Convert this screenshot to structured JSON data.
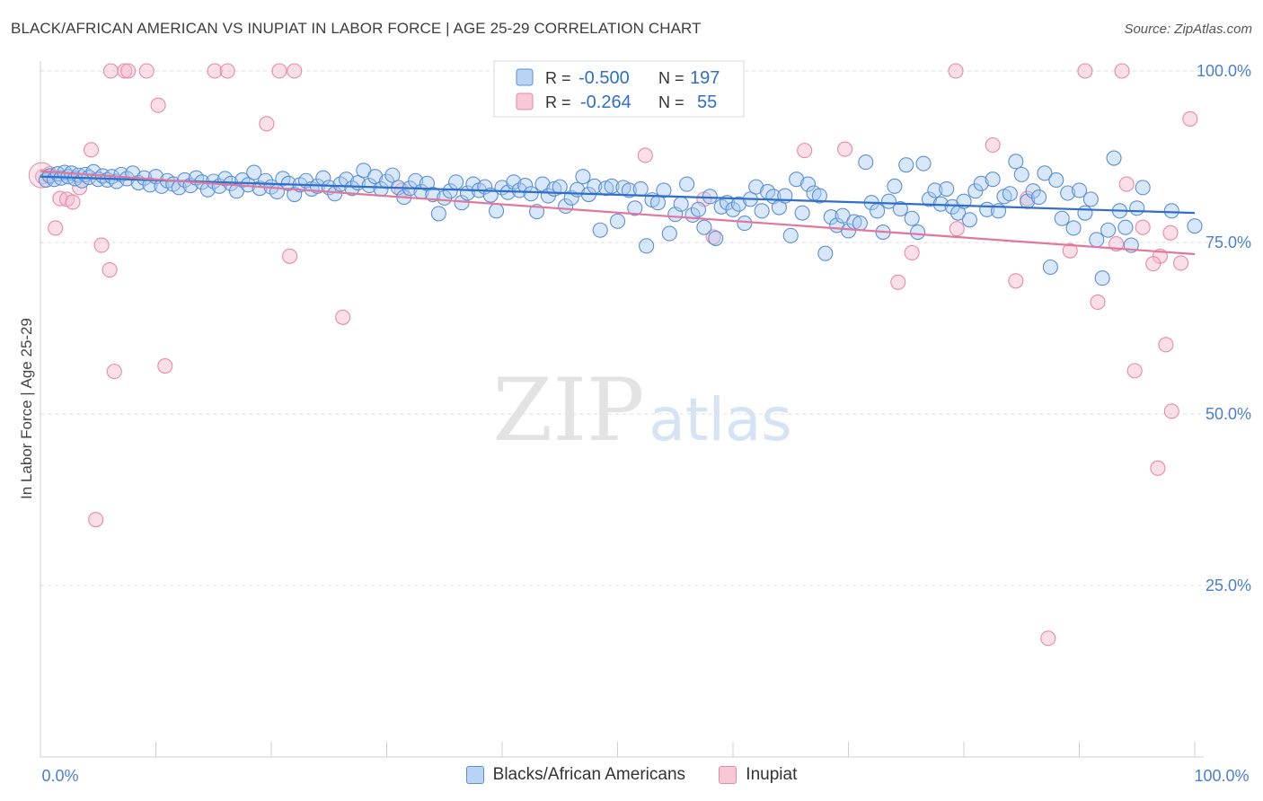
{
  "title": "BLACK/AFRICAN AMERICAN VS INUPIAT IN LABOR FORCE | AGE 25-29 CORRELATION CHART",
  "source": "Source: ZipAtlas.com",
  "watermark": {
    "zip": "ZIP",
    "atlas": "atlas"
  },
  "colors": {
    "blue_fill": "#a9c9f1",
    "blue_stroke": "#5b8fd6",
    "blue_line": "#2f6fc8",
    "pink_fill": "#f6b9cb",
    "pink_stroke": "#e58aa6",
    "pink_line": "#e2769b",
    "value_text": "#2f6fc8",
    "axis_text": "#4a7fcf"
  },
  "legend_top": {
    "rows": [
      {
        "r_label": "R =",
        "r_value": "-0.500",
        "n_label": "N =",
        "n_value": "197"
      },
      {
        "r_label": "R =",
        "r_value": "-0.264",
        "n_label": "N =",
        "n_value": "55"
      }
    ]
  },
  "legend_bottom": [
    {
      "label": "Blacks/African Americans"
    },
    {
      "label": "Inupiat"
    }
  ],
  "chart_data": {
    "type": "scatter",
    "title": "BLACK/AFRICAN AMERICAN VS INUPIAT IN LABOR FORCE | AGE 25-29 CORRELATION CHART",
    "xlabel": "",
    "ylabel": "In Labor Force | Age 25-29",
    "xlim": [
      0,
      100
    ],
    "ylim": [
      0,
      102
    ],
    "x_tick_labels": [
      "0.0%",
      "100.0%"
    ],
    "y_ticks": [
      25,
      50,
      75,
      100
    ],
    "y_tick_labels": [
      "25.0%",
      "50.0%",
      "75.0%",
      "100.0%"
    ],
    "grid": "horizontal dashed",
    "legend_placement": "top-center",
    "series": [
      {
        "name": "Blacks/African Americans",
        "r": -0.5,
        "n": 197,
        "trend": {
          "x": [
            0,
            100
          ],
          "y": [
            84.6,
            79.3
          ]
        },
        "points": [
          [
            0.5,
            84.1
          ],
          [
            0.8,
            84.7
          ],
          [
            1.2,
            84.2
          ],
          [
            1.5,
            85.0
          ],
          [
            1.8,
            84.4
          ],
          [
            2.1,
            85.2
          ],
          [
            2.4,
            84.6
          ],
          [
            2.7,
            85.1
          ],
          [
            3.0,
            84.3
          ],
          [
            3.3,
            84.8
          ],
          [
            3.6,
            84.0
          ],
          [
            3.9,
            84.9
          ],
          [
            4.2,
            84.5
          ],
          [
            4.6,
            85.3
          ],
          [
            5.0,
            84.2
          ],
          [
            5.4,
            84.7
          ],
          [
            5.8,
            84.1
          ],
          [
            6.2,
            84.6
          ],
          [
            6.6,
            83.9
          ],
          [
            7.0,
            84.9
          ],
          [
            7.5,
            84.3
          ],
          [
            8.0,
            85.1
          ],
          [
            8.5,
            83.7
          ],
          [
            9.0,
            84.4
          ],
          [
            9.5,
            83.4
          ],
          [
            10.0,
            84.6
          ],
          [
            10.5,
            83.2
          ],
          [
            11.0,
            84.0
          ],
          [
            11.5,
            83.5
          ],
          [
            12.0,
            83.0
          ],
          [
            12.5,
            84.1
          ],
          [
            13.0,
            83.3
          ],
          [
            13.5,
            84.4
          ],
          [
            14.0,
            83.8
          ],
          [
            14.5,
            82.7
          ],
          [
            15.0,
            83.9
          ],
          [
            15.5,
            83.2
          ],
          [
            16.0,
            84.3
          ],
          [
            16.5,
            83.6
          ],
          [
            17.0,
            82.5
          ],
          [
            17.5,
            84.1
          ],
          [
            18.0,
            83.4
          ],
          [
            18.5,
            85.2
          ],
          [
            19.0,
            82.9
          ],
          [
            19.5,
            84.0
          ],
          [
            20.0,
            83.1
          ],
          [
            20.5,
            82.4
          ],
          [
            21.0,
            84.3
          ],
          [
            21.5,
            83.6
          ],
          [
            22.0,
            82.0
          ],
          [
            22.5,
            83.4
          ],
          [
            23.0,
            84.0
          ],
          [
            23.5,
            82.8
          ],
          [
            24.0,
            83.2
          ],
          [
            24.5,
            84.4
          ],
          [
            25.0,
            83.0
          ],
          [
            25.5,
            82.1
          ],
          [
            26.0,
            83.5
          ],
          [
            26.5,
            84.2
          ],
          [
            27.0,
            82.9
          ],
          [
            27.5,
            83.7
          ],
          [
            28.0,
            85.5
          ],
          [
            28.5,
            83.3
          ],
          [
            29.0,
            84.6
          ],
          [
            29.5,
            82.8
          ],
          [
            30.0,
            83.9
          ],
          [
            30.5,
            84.8
          ],
          [
            31.0,
            83.0
          ],
          [
            31.5,
            81.6
          ],
          [
            32.0,
            82.9
          ],
          [
            32.5,
            84.0
          ],
          [
            33.0,
            82.4
          ],
          [
            33.5,
            83.6
          ],
          [
            34.0,
            82.0
          ],
          [
            34.5,
            79.2
          ],
          [
            35.0,
            81.5
          ],
          [
            35.5,
            82.5
          ],
          [
            36.0,
            83.8
          ],
          [
            36.5,
            80.8
          ],
          [
            37.0,
            82.2
          ],
          [
            37.5,
            83.5
          ],
          [
            38.0,
            82.6
          ],
          [
            38.5,
            83.1
          ],
          [
            39.0,
            81.9
          ],
          [
            39.5,
            79.6
          ],
          [
            40.0,
            83.0
          ],
          [
            40.5,
            82.3
          ],
          [
            41.0,
            83.8
          ],
          [
            41.5,
            82.6
          ],
          [
            42.0,
            83.3
          ],
          [
            42.5,
            82.1
          ],
          [
            43.0,
            79.5
          ],
          [
            43.5,
            83.5
          ],
          [
            44.0,
            81.8
          ],
          [
            44.5,
            82.8
          ],
          [
            45.0,
            83.1
          ],
          [
            45.5,
            80.3
          ],
          [
            46.0,
            81.5
          ],
          [
            46.5,
            82.7
          ],
          [
            47.0,
            84.6
          ],
          [
            47.5,
            82.0
          ],
          [
            48.0,
            83.2
          ],
          [
            48.5,
            76.8
          ],
          [
            49.0,
            82.9
          ],
          [
            49.5,
            83.2
          ],
          [
            50.0,
            78.1
          ],
          [
            50.5,
            83.0
          ],
          [
            51.0,
            82.6
          ],
          [
            51.5,
            80.0
          ],
          [
            52.0,
            82.8
          ],
          [
            52.5,
            74.5
          ],
          [
            53.0,
            81.2
          ],
          [
            53.5,
            80.8
          ],
          [
            54.0,
            82.6
          ],
          [
            54.5,
            76.3
          ],
          [
            55.0,
            79.1
          ],
          [
            55.5,
            80.6
          ],
          [
            56.0,
            83.5
          ],
          [
            56.5,
            79.0
          ],
          [
            57.0,
            79.8
          ],
          [
            57.5,
            77.2
          ],
          [
            58.0,
            81.7
          ],
          [
            58.5,
            75.6
          ],
          [
            59.0,
            80.2
          ],
          [
            59.5,
            80.8
          ],
          [
            60.0,
            79.8
          ],
          [
            60.5,
            80.6
          ],
          [
            61.0,
            77.8
          ],
          [
            61.5,
            81.3
          ],
          [
            62.0,
            83.1
          ],
          [
            62.5,
            79.6
          ],
          [
            63.0,
            82.4
          ],
          [
            63.5,
            81.7
          ],
          [
            64.0,
            80.1
          ],
          [
            64.5,
            81.8
          ],
          [
            65.0,
            76.0
          ],
          [
            65.5,
            84.2
          ],
          [
            66.0,
            79.3
          ],
          [
            66.5,
            83.5
          ],
          [
            67.0,
            82.2
          ],
          [
            67.5,
            81.8
          ],
          [
            68.0,
            73.4
          ],
          [
            68.5,
            78.7
          ],
          [
            69.0,
            77.5
          ],
          [
            69.5,
            78.9
          ],
          [
            70.0,
            76.7
          ],
          [
            70.5,
            78.0
          ],
          [
            71.0,
            77.8
          ],
          [
            71.5,
            86.7
          ],
          [
            72.0,
            80.8
          ],
          [
            72.5,
            79.6
          ],
          [
            73.0,
            76.5
          ],
          [
            73.5,
            81.0
          ],
          [
            74.0,
            83.2
          ],
          [
            74.5,
            79.9
          ],
          [
            75.0,
            86.3
          ],
          [
            75.5,
            78.5
          ],
          [
            76.0,
            76.5
          ],
          [
            76.5,
            86.5
          ],
          [
            77.0,
            81.3
          ],
          [
            77.5,
            82.6
          ],
          [
            78.0,
            80.6
          ],
          [
            78.5,
            82.8
          ],
          [
            79.0,
            80.2
          ],
          [
            79.5,
            79.3
          ],
          [
            80.0,
            81.0
          ],
          [
            80.5,
            78.3
          ],
          [
            81.0,
            82.5
          ],
          [
            81.5,
            83.6
          ],
          [
            82.0,
            79.8
          ],
          [
            82.5,
            84.2
          ],
          [
            83.0,
            79.6
          ],
          [
            83.5,
            81.7
          ],
          [
            84.0,
            82.1
          ],
          [
            84.5,
            86.8
          ],
          [
            85.0,
            84.9
          ],
          [
            85.5,
            81.0
          ],
          [
            86.0,
            82.5
          ],
          [
            86.5,
            81.6
          ],
          [
            87.0,
            85.1
          ],
          [
            87.5,
            71.4
          ],
          [
            88.0,
            84.1
          ],
          [
            88.5,
            78.5
          ],
          [
            89.0,
            82.2
          ],
          [
            89.5,
            77.1
          ],
          [
            90.0,
            82.6
          ],
          [
            90.5,
            79.3
          ],
          [
            91.0,
            81.3
          ],
          [
            91.5,
            75.4
          ],
          [
            92.0,
            69.8
          ],
          [
            92.5,
            76.8
          ],
          [
            93.0,
            87.3
          ],
          [
            93.5,
            79.6
          ],
          [
            94.0,
            77.2
          ],
          [
            94.5,
            74.6
          ],
          [
            95.0,
            80.0
          ],
          [
            95.5,
            83.0
          ],
          [
            100.0,
            77.4
          ],
          [
            98.0,
            79.6
          ]
        ]
      },
      {
        "name": "Inupiat",
        "r": -0.264,
        "n": 55,
        "trend": {
          "x": [
            0,
            100
          ],
          "y": [
            85.4,
            73.3
          ]
        },
        "points": [
          [
            0.2,
            84.6
          ],
          [
            0.8,
            85.0
          ],
          [
            1.3,
            77.1
          ],
          [
            1.7,
            81.4
          ],
          [
            2.3,
            81.3
          ],
          [
            2.8,
            80.9
          ],
          [
            3.4,
            83.0
          ],
          [
            4.4,
            88.5
          ],
          [
            4.8,
            34.6
          ],
          [
            5.3,
            74.6
          ],
          [
            6.0,
            71.0
          ],
          [
            6.4,
            56.2
          ],
          [
            6.1,
            100.0
          ],
          [
            7.3,
            100.0
          ],
          [
            7.6,
            100.0
          ],
          [
            9.2,
            100.0
          ],
          [
            10.2,
            95.0
          ],
          [
            10.8,
            57.0
          ],
          [
            15.1,
            100.0
          ],
          [
            16.2,
            100.0
          ],
          [
            19.6,
            92.3
          ],
          [
            20.7,
            100.0
          ],
          [
            21.6,
            73.0
          ],
          [
            22.0,
            100.0
          ],
          [
            26.2,
            64.1
          ],
          [
            31.3,
            82.6
          ],
          [
            52.4,
            87.7
          ],
          [
            57.5,
            81.3
          ],
          [
            58.3,
            75.8
          ],
          [
            66.2,
            88.4
          ],
          [
            69.7,
            88.6
          ],
          [
            74.3,
            69.2
          ],
          [
            75.5,
            73.5
          ],
          [
            79.3,
            100.0
          ],
          [
            79.4,
            77.0
          ],
          [
            82.5,
            89.2
          ],
          [
            84.5,
            69.4
          ],
          [
            85.5,
            81.4
          ],
          [
            87.3,
            17.3
          ],
          [
            89.2,
            73.8
          ],
          [
            90.5,
            100.0
          ],
          [
            91.6,
            66.3
          ],
          [
            93.2,
            74.8
          ],
          [
            93.7,
            100.0
          ],
          [
            94.1,
            83.5
          ],
          [
            94.8,
            56.3
          ],
          [
            95.5,
            77.2
          ],
          [
            96.8,
            42.1
          ],
          [
            97.0,
            73.0
          ],
          [
            97.5,
            60.1
          ],
          [
            98.0,
            50.4
          ],
          [
            98.8,
            72.0
          ],
          [
            99.6,
            93.0
          ],
          [
            97.9,
            76.4
          ],
          [
            96.4,
            71.9
          ]
        ]
      }
    ]
  }
}
